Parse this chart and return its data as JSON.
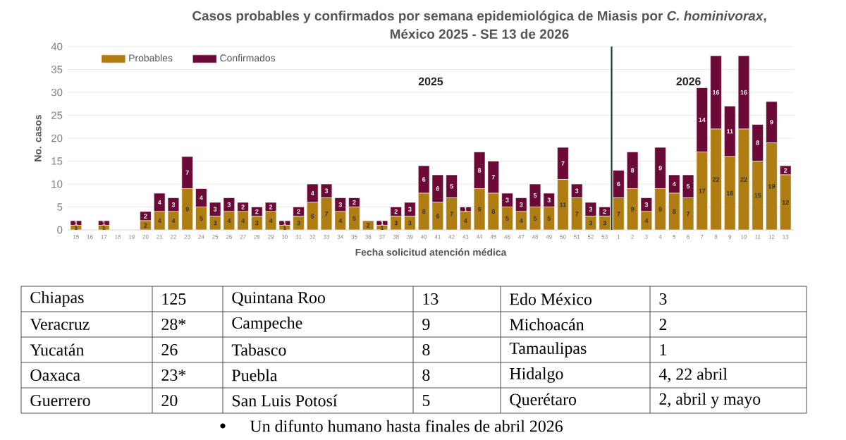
{
  "chart_data": {
    "type": "bar",
    "stacked": true,
    "title": "Casos probables y confirmados por semana epidemiológica de Miasis por *C. hominivorax*,",
    "subtitle": "México 2025 - SE 13 de 2026",
    "xlabel": "Fecha solicitud atención médica",
    "ylabel": "No. casos",
    "categories": [
      "15",
      "16",
      "17",
      "18",
      "19",
      "20",
      "21",
      "22",
      "23",
      "24",
      "25",
      "26",
      "27",
      "28",
      "29",
      "30",
      "31",
      "32",
      "33",
      "34",
      "35",
      "36",
      "37",
      "38",
      "39",
      "40",
      "41",
      "42",
      "43",
      "44",
      "45",
      "46",
      "47",
      "48",
      "49",
      "50",
      "51",
      "52",
      "53",
      "1",
      "2",
      "3",
      "4",
      "5",
      "6",
      "7",
      "8",
      "9",
      "10",
      "11",
      "12",
      "13"
    ],
    "series": [
      {
        "name": "Probables",
        "color": "#b07d12",
        "values": [
          1,
          0,
          1,
          0,
          0,
          2,
          4,
          4,
          9,
          5,
          3,
          4,
          4,
          3,
          4,
          1,
          3,
          6,
          7,
          4,
          5,
          2,
          1,
          3,
          3,
          8,
          6,
          7,
          4,
          9,
          8,
          5,
          4,
          5,
          5,
          11,
          7,
          3,
          3,
          7,
          9,
          4,
          9,
          8,
          7,
          17,
          22,
          16,
          22,
          15,
          19,
          12
        ],
        "value_labels": [
          "1",
          null,
          "1",
          null,
          null,
          "2",
          "4",
          "4",
          "9",
          "5",
          "3",
          "4",
          "4",
          "3",
          "4",
          "1",
          "3",
          "6",
          "7",
          "4",
          "5",
          "2",
          "1",
          "3",
          "3",
          "8",
          "6",
          "7",
          "4",
          "9",
          "8",
          "5",
          "4",
          "5",
          "5",
          "11",
          "7",
          "3",
          "3",
          "7",
          "9",
          "4",
          "9",
          "8",
          "7",
          "17",
          "22",
          "16",
          "22",
          "15",
          "19",
          "12"
        ]
      },
      {
        "name": "Confirmados",
        "color": "#6b0a36",
        "values": [
          1,
          0,
          1,
          0,
          0,
          2,
          4,
          3,
          7,
          4,
          3,
          3,
          2,
          2,
          2,
          1,
          2,
          4,
          3,
          3,
          2,
          0,
          1,
          2,
          3,
          6,
          6,
          5,
          1,
          8,
          7,
          3,
          3,
          5,
          3,
          7,
          3,
          3,
          2,
          6,
          8,
          3,
          9,
          4,
          5,
          14,
          16,
          11,
          16,
          8,
          9,
          2
        ],
        "value_labels": [
          "1",
          null,
          "1",
          null,
          null,
          "2",
          "4",
          "3",
          "7",
          "4",
          "3",
          "3",
          "2",
          "2",
          "2",
          "1",
          "2",
          "4",
          "3",
          "3",
          "2",
          null,
          "1",
          "2",
          "3",
          "6",
          "6",
          "5",
          "1",
          "8",
          "7",
          "3",
          "3",
          "5",
          "3",
          "7",
          "3",
          "3",
          "2",
          "6",
          "8",
          "3",
          "9",
          "4",
          "5",
          "14",
          "16",
          "11",
          "16",
          "8",
          "9",
          "2"
        ]
      }
    ],
    "ylim": [
      0,
      40
    ],
    "yticks": [
      0,
      5,
      10,
      15,
      20,
      25,
      30,
      35,
      40
    ],
    "grid": "y",
    "legend": "top left",
    "ref_lines": [
      {
        "axis": "x",
        "value": "1",
        "color": "#1f3d33"
      }
    ],
    "annotations": [
      "2025",
      "2026",
      "Chiapas",
      "125",
      "Quintana Roo",
      "13",
      "Edo México",
      "3",
      "Veracruz",
      "28*",
      "Campeche",
      "9",
      "Michoacán",
      "2",
      "Yucatán",
      "26",
      "Tabasco",
      "8",
      "Tamaulipas",
      "1",
      "Oaxaca",
      "23*",
      "Puebla",
      "8",
      "Hidalgo",
      "4, 22 abril",
      "Guerrero",
      "20",
      "San Luis Potosí",
      "5",
      "Querétaro",
      "2, abril y mayo",
      "Un difunto humano hasta finales de abril 2026"
    ]
  }
}
